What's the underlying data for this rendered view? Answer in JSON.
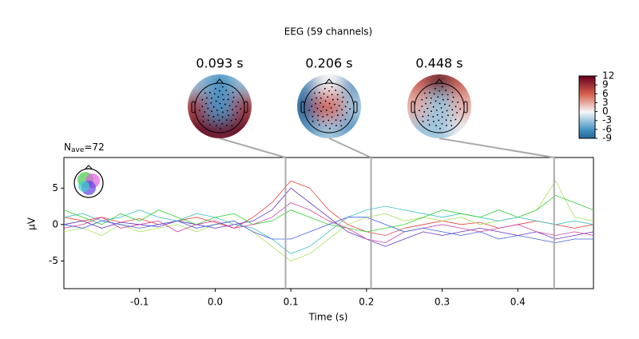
{
  "chart_data": {
    "type": "line",
    "title": "EEG (59 channels)",
    "annotation": {
      "base": "N",
      "sub": "ave",
      "text": "=72"
    },
    "xlabel": "Time (s)",
    "ylabel": "µV",
    "xlim": [
      -0.2,
      0.5
    ],
    "ylim": [
      -8.8,
      9.2
    ],
    "xticks": [
      -0.1,
      {
        "value": 0,
        "label": "0.0"
      },
      0.1,
      0.2,
      0.3,
      0.4
    ],
    "yticks": [
      -5,
      0,
      5
    ],
    "x": [
      -0.2,
      -0.175,
      -0.15,
      -0.125,
      -0.1,
      -0.075,
      -0.05,
      -0.025,
      0,
      0.025,
      0.05,
      0.075,
      0.1,
      0.125,
      0.15,
      0.175,
      0.2,
      0.225,
      0.25,
      0.275,
      0.3,
      0.325,
      0.35,
      0.375,
      0.4,
      0.425,
      0.45,
      0.475,
      0.5
    ],
    "series": [
      {
        "color": "#e8413a",
        "values": [
          1,
          0.5,
          1,
          0.3,
          0.8,
          0,
          0.5,
          1,
          0.3,
          -0.5,
          1,
          3,
          6,
          5,
          2,
          0,
          -1,
          -1.5,
          -0.5,
          0,
          0.5,
          0,
          0.3,
          -0.5,
          0,
          0.5,
          0,
          -0.5,
          0
        ]
      },
      {
        "color": "#b0e060",
        "values": [
          -1,
          -0.5,
          -1.5,
          0,
          -1,
          -0.5,
          0,
          -1,
          0,
          0.5,
          -1,
          -3,
          -5,
          -4,
          -2,
          0,
          1,
          1.5,
          0.5,
          1,
          0.5,
          1,
          0,
          0.5,
          1,
          2,
          6,
          1,
          0.5
        ]
      },
      {
        "color": "#6030c0",
        "values": [
          0,
          0.5,
          -0.5,
          0.3,
          0,
          -0.3,
          0.5,
          0,
          -0.5,
          0,
          0.5,
          2,
          5,
          3,
          1,
          -1,
          -2,
          -3,
          -2,
          -1,
          -1.5,
          -1,
          -0.5,
          -1,
          -1.5,
          -1,
          -2,
          -1.5,
          -1
        ]
      },
      {
        "color": "#40c0c0",
        "values": [
          1,
          1.5,
          0.5,
          1,
          2,
          1,
          0.5,
          1.5,
          1,
          0,
          -0.5,
          -2,
          -4,
          -3,
          -1,
          1,
          2,
          2.5,
          2,
          1.5,
          1,
          1.5,
          1,
          0.5,
          1,
          0.5,
          0,
          0.5,
          0
        ]
      },
      {
        "color": "#30d030",
        "values": [
          2,
          1,
          0,
          1.5,
          0.5,
          2,
          1,
          0,
          1,
          1.5,
          0,
          0.5,
          2,
          1,
          0,
          -0.5,
          -1,
          -0.5,
          0,
          1,
          2,
          1.5,
          1,
          2,
          1,
          2,
          4,
          3,
          2
        ]
      },
      {
        "color": "#d040a0",
        "values": [
          -0.5,
          0,
          1,
          -0.5,
          0,
          0.5,
          -1,
          0,
          0.5,
          -0.5,
          0,
          1,
          3,
          2,
          0.5,
          -0.5,
          -2,
          -2.5,
          -1,
          -0.5,
          0,
          -0.5,
          -1,
          -0.5,
          0,
          -1,
          -1.5,
          -1,
          -1.5
        ]
      },
      {
        "color": "#4060e0",
        "values": [
          0,
          -0.5,
          0.5,
          0,
          -0.5,
          0,
          0.5,
          -0.5,
          0,
          0.5,
          -1,
          -2,
          -2,
          -1,
          0,
          1,
          1,
          0,
          -1,
          -0.5,
          -1,
          -1.5,
          -1,
          -2,
          -1.5,
          -2,
          -2.5,
          -2,
          -2
        ]
      }
    ],
    "topomaps": [
      {
        "time": {
          "value": 0.093,
          "label": "0.093 s"
        },
        "grid": [
          [
            -3,
            -6,
            -3
          ],
          [
            9,
            -6,
            9
          ],
          [
            12,
            12,
            12
          ]
        ]
      },
      {
        "time": {
          "value": 0.206,
          "label": "0.206 s"
        },
        "grid": [
          [
            -6,
            0,
            -6
          ],
          [
            -9,
            6,
            -3
          ],
          [
            -6,
            -3,
            -6
          ]
        ]
      },
      {
        "time": {
          "value": 0.448,
          "label": "0.448 s"
        },
        "grid": [
          [
            6,
            12,
            6
          ],
          [
            3,
            -3,
            3
          ],
          [
            -3,
            -3,
            0
          ]
        ]
      }
    ],
    "colorbar": {
      "lim": [
        -9,
        12
      ],
      "ticks": [
        12,
        9,
        6,
        3,
        0,
        -3,
        -6,
        -9
      ]
    }
  }
}
